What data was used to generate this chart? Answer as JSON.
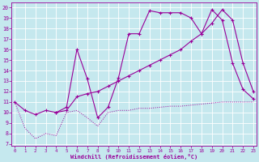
{
  "bg_color": "#c5e8ee",
  "line_color": "#990099",
  "grid_color": "#ffffff",
  "xlim": [
    -0.3,
    23.3
  ],
  "ylim": [
    6.8,
    20.5
  ],
  "xticks": [
    0,
    1,
    2,
    3,
    4,
    5,
    6,
    7,
    8,
    9,
    10,
    11,
    12,
    13,
    14,
    15,
    16,
    17,
    18,
    19,
    20,
    21,
    22,
    23
  ],
  "yticks": [
    7,
    8,
    9,
    10,
    11,
    12,
    13,
    14,
    15,
    16,
    17,
    18,
    19,
    20
  ],
  "xlabel": "Windchill (Refroidissement éolien,°C)",
  "line1_x": [
    0,
    1,
    2,
    3,
    4,
    5,
    6,
    7,
    8,
    9,
    10,
    11,
    12,
    13,
    14,
    15,
    16,
    17,
    18,
    19,
    20,
    21,
    22,
    23
  ],
  "line1_y": [
    11.0,
    8.5,
    7.5,
    8.0,
    7.8,
    10.0,
    10.2,
    9.5,
    8.7,
    10.0,
    10.2,
    10.2,
    10.4,
    10.4,
    10.5,
    10.6,
    10.6,
    10.7,
    10.8,
    10.9,
    11.0,
    11.0,
    11.0,
    11.0
  ],
  "line2_x": [
    4,
    5,
    6,
    7,
    8,
    9,
    10,
    11,
    12,
    13,
    14,
    15,
    16,
    17,
    18,
    19,
    20,
    21,
    22,
    23
  ],
  "line2_y": [
    10.0,
    10.5,
    16.0,
    13.2,
    9.5,
    10.5,
    13.3,
    17.5,
    17.5,
    19.7,
    19.5,
    19.5,
    19.5,
    19.0,
    17.5,
    19.8,
    18.8,
    14.7,
    12.2,
    11.3
  ],
  "line3_x": [
    0,
    1,
    2,
    3,
    4,
    5,
    6,
    7,
    8,
    9,
    10,
    11,
    12,
    13,
    14,
    15,
    16,
    17,
    18,
    19,
    20,
    21,
    22,
    23
  ],
  "line3_y": [
    11.0,
    10.2,
    9.8,
    10.2,
    10.0,
    10.2,
    11.5,
    11.8,
    12.0,
    12.5,
    13.0,
    13.5,
    14.0,
    14.5,
    15.0,
    15.5,
    16.0,
    16.8,
    17.5,
    18.5,
    19.8,
    18.8,
    14.7,
    12.0
  ]
}
